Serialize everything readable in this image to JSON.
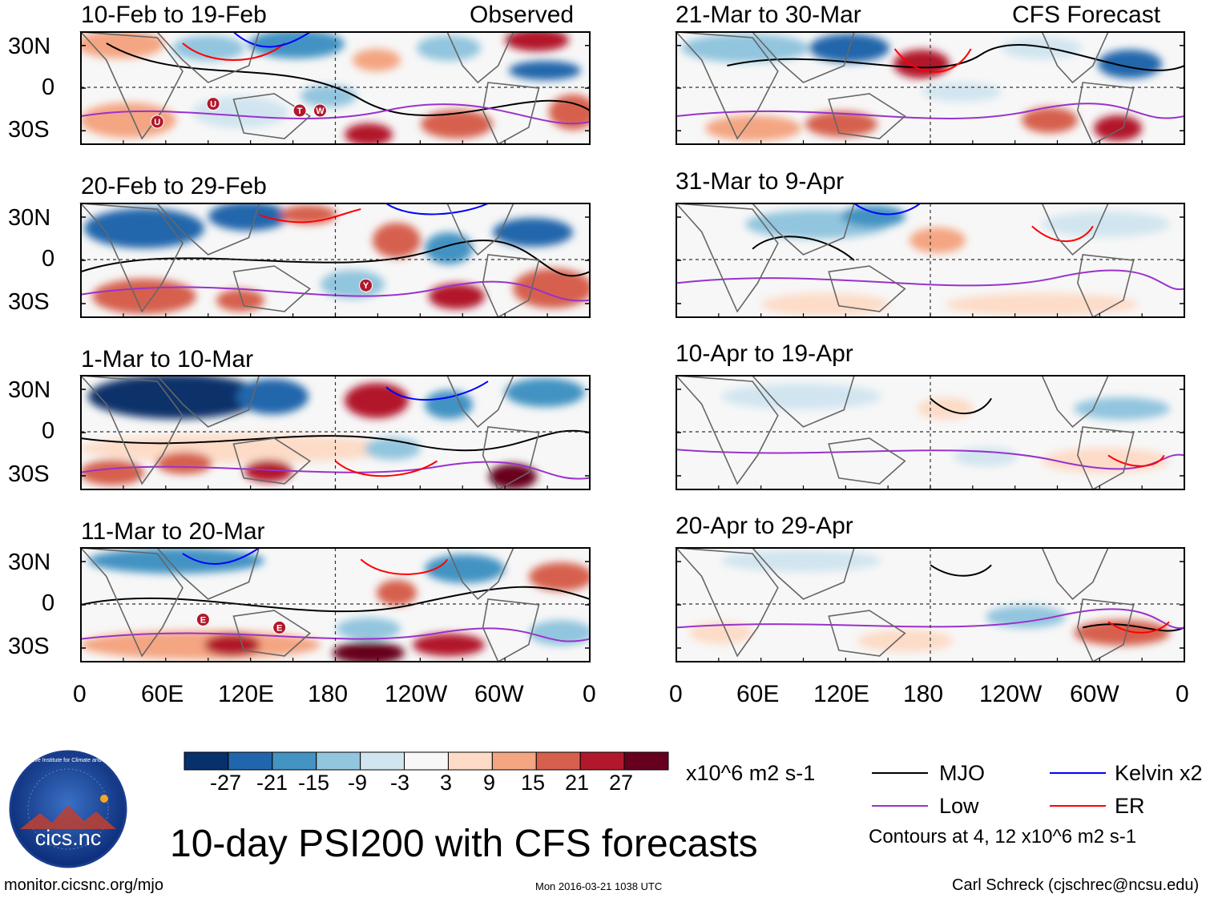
{
  "colors": {
    "scale": [
      "#08306b",
      "#2166ac",
      "#4393c3",
      "#92c5de",
      "#d1e5f0",
      "#f7f7f7",
      "#fddbc7",
      "#f4a582",
      "#d6604d",
      "#b2182b",
      "#67001f"
    ],
    "land": "#666666",
    "mjo": "#000000",
    "low": "#9932cc",
    "kelvin": "#0000ff",
    "er": "#ff0000"
  },
  "lat_labels": [
    "30N",
    "0",
    "30S"
  ],
  "lon_labels": [
    "0",
    "60E",
    "120E",
    "180",
    "120W",
    "60W",
    "0"
  ],
  "observed_label": "Observed",
  "forecast_label": "CFS Forecast",
  "panels_left": [
    {
      "title": "10-Feb to 19-Feb",
      "markers": [
        "U",
        "U",
        "T",
        "W"
      ]
    },
    {
      "title": "20-Feb to 29-Feb",
      "markers": [
        "Y"
      ]
    },
    {
      "title": "1-Mar to 10-Mar",
      "markers": []
    },
    {
      "title": "11-Mar to 20-Mar",
      "markers": [
        "E",
        "E"
      ]
    }
  ],
  "panels_right": [
    {
      "title": "21-Mar to 30-Mar"
    },
    {
      "title": "31-Mar to 9-Apr"
    },
    {
      "title": "10-Apr to 19-Apr"
    },
    {
      "title": "20-Apr to 29-Apr"
    }
  ],
  "colorbar": {
    "labels": [
      "-27",
      "-21",
      "-15",
      "-9",
      "-3",
      "3",
      "9",
      "15",
      "21",
      "27"
    ],
    "units": "x10^6 m2 s-1"
  },
  "legend": {
    "mjo": "MJO",
    "low": "Low",
    "kelvin": "Kelvin x2",
    "er": "ER",
    "contours": "Contours at 4, 12 x10^6 m2 s-1"
  },
  "logo": {
    "text": "cics.nc",
    "ring": "Cooperative Institute for Climate and Satellites"
  },
  "main_title": "10-day PSI200 with CFS forecasts",
  "footer": {
    "url": "monitor.cicsnc.org/mjo",
    "timestamp": "Mon 2016-03-21 1038 UTC",
    "author": "Carl Schreck (cjschrec@ncsu.edu)"
  }
}
